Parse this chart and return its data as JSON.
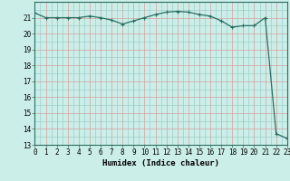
{
  "x_values": [
    0,
    1,
    2,
    3,
    4,
    5,
    6,
    7,
    8,
    9,
    10,
    11,
    12,
    13,
    14,
    15,
    16,
    17,
    18,
    19,
    20,
    21,
    22,
    23
  ],
  "y_values": [
    21.3,
    21.0,
    21.0,
    21.0,
    21.0,
    21.1,
    21.0,
    20.85,
    20.6,
    20.8,
    21.0,
    21.2,
    21.35,
    21.4,
    21.35,
    21.2,
    21.1,
    20.8,
    20.4,
    20.5,
    20.5,
    21.0,
    13.7,
    13.4
  ],
  "xlim": [
    0,
    23
  ],
  "ylim": [
    13,
    22
  ],
  "yticks": [
    13,
    14,
    15,
    16,
    17,
    18,
    19,
    20,
    21
  ],
  "xticks": [
    0,
    1,
    2,
    3,
    4,
    5,
    6,
    7,
    8,
    9,
    10,
    11,
    12,
    13,
    14,
    15,
    16,
    17,
    18,
    19,
    20,
    21,
    22,
    23
  ],
  "xlabel": "Humidex (Indice chaleur)",
  "line_color": "#2a6e62",
  "marker": "+",
  "bg_color": "#cceee8",
  "teal_grid_color": "#9ecfcb",
  "red_grid_color": "#d4a0a0",
  "xlabel_fontsize": 6.5,
  "tick_fontsize": 5.5
}
